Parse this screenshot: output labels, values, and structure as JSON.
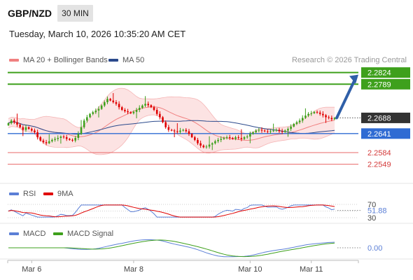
{
  "header": {
    "symbol": "GBP/NZD",
    "timeframe": "30 MIN",
    "datetime": "Tuesday, March 10, 2026 10:35:20 AM CET",
    "credit": "Research © 2026 Trading Central"
  },
  "legend_main": [
    {
      "label": "MA 20 + Bollinger Bands",
      "color": "#f08080"
    },
    {
      "label": "MA 50",
      "color": "#2b4a8c"
    }
  ],
  "legend_rsi": [
    {
      "label": "RSI",
      "color": "#5b7fd6"
    },
    {
      "label": "9MA",
      "color": "#e00000"
    }
  ],
  "legend_macd": [
    {
      "label": "MACD",
      "color": "#5b7fd6"
    },
    {
      "label": "MACD Signal",
      "color": "#3ea01c"
    }
  ],
  "colors": {
    "bull": "#3ea01c",
    "bear": "#e00000",
    "support": "#e86a6a",
    "pivot": "#2f6bd3",
    "arrow": "#2f5fa8",
    "last": "#333333"
  },
  "chart_data": [
    {
      "type": "candlestick",
      "title": "GBP/NZD",
      "ylim": [
        2.25,
        2.284
      ],
      "x_ticks": [
        "Mar 6",
        "Mar 8",
        "Mar 10",
        "Mar 11"
      ],
      "levels": [
        {
          "value": 2.2824,
          "label": "2.2824",
          "kind": "resistance"
        },
        {
          "value": 2.2789,
          "label": "2.2789",
          "kind": "resistance"
        },
        {
          "value": 2.2688,
          "label": "2.2688",
          "kind": "last"
        },
        {
          "value": 2.2641,
          "label": "2.2641",
          "kind": "pivot"
        },
        {
          "value": 2.2584,
          "label": "2.2584",
          "kind": "support"
        },
        {
          "value": 2.2549,
          "label": "2.2549",
          "kind": "support"
        }
      ],
      "close": [
        2.2672,
        2.268,
        2.2675,
        2.2668,
        2.266,
        2.2652,
        2.266,
        2.2655,
        2.265,
        2.2645,
        2.263,
        2.262,
        2.2615,
        2.2612,
        2.2618,
        2.2622,
        2.2625,
        2.2628,
        2.2632,
        2.263,
        2.2625,
        2.2622,
        2.262,
        2.2628,
        2.264,
        2.266,
        2.268,
        2.269,
        2.27,
        2.2705,
        2.271,
        2.2715,
        2.2725,
        2.2735,
        2.2745,
        2.274,
        2.2735,
        2.273,
        2.272,
        2.2712,
        2.2708,
        2.2705,
        2.2702,
        2.2706,
        2.2712,
        2.2718,
        2.2725,
        2.273,
        2.2726,
        2.272,
        2.2712,
        2.27,
        2.269,
        2.2675,
        2.266,
        2.2652,
        2.265,
        2.2648,
        2.2646,
        2.265,
        2.2652,
        2.2648,
        2.264,
        2.263,
        2.2622,
        2.2612,
        2.2605,
        2.26,
        2.2602,
        2.2608,
        2.2612,
        2.2618,
        2.2622,
        2.2625,
        2.2628,
        2.263,
        2.2628,
        2.2625,
        2.263,
        2.2628,
        2.2625,
        2.263,
        2.2632,
        2.264,
        2.2645,
        2.265,
        2.2652,
        2.265,
        2.2648,
        2.2646,
        2.2648,
        2.265,
        2.2652,
        2.2648,
        2.2646,
        2.265,
        2.2655,
        2.2662,
        2.267,
        2.2675,
        2.268,
        2.2688,
        2.2695,
        2.27,
        2.2702,
        2.2706,
        2.2704,
        2.27,
        2.2696,
        2.269,
        2.2688,
        2.2684,
        2.2688
      ],
      "rsi": {
        "ylim": [
          30,
          70
        ],
        "ticks": [
          "70",
          "30"
        ],
        "last": "51.88"
      },
      "macd": {
        "last": "0.00"
      }
    }
  ]
}
